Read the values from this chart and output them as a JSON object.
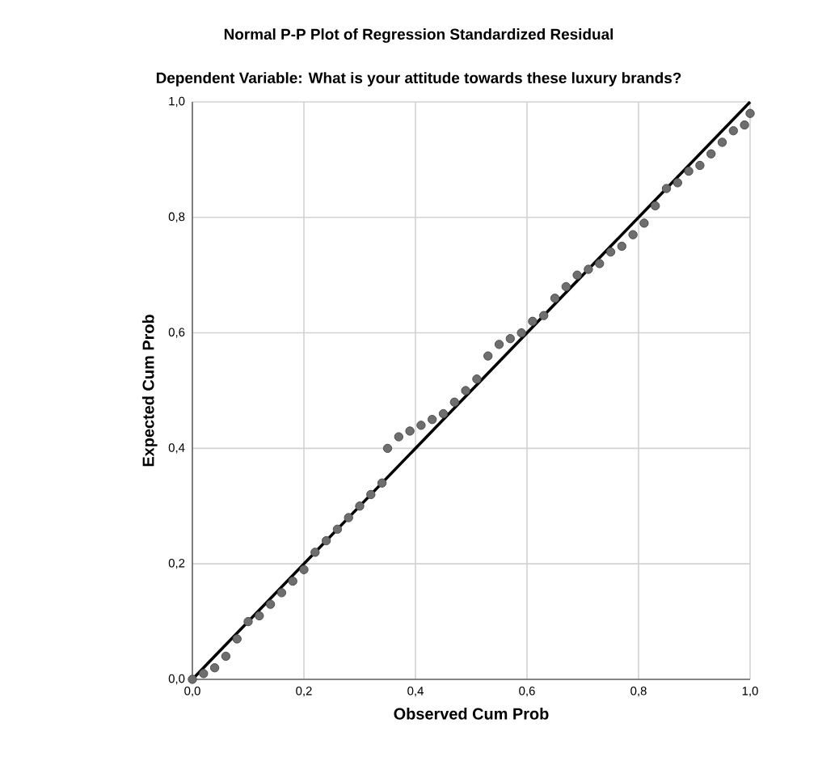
{
  "chart_data": {
    "type": "scatter",
    "title": "Normal P-P Plot of Regression Standardized Residual",
    "subtitle": "Dependent Variable: What is your attitude towards these luxury brands?",
    "xlabel": "Observed Cum Prob",
    "ylabel": "Expected Cum Prob",
    "xlim": [
      0,
      1
    ],
    "ylim": [
      0,
      1
    ],
    "xticks": [
      {
        "value": 0,
        "label": "0,0"
      },
      {
        "value": 0.2,
        "label": "0,2"
      },
      {
        "value": 0.4,
        "label": "0,4"
      },
      {
        "value": 0.6,
        "label": "0,6"
      },
      {
        "value": 0.8,
        "label": "0,8"
      },
      {
        "value": 1,
        "label": "1,0"
      }
    ],
    "yticks": [
      {
        "value": 0,
        "label": "0,0"
      },
      {
        "value": 0.2,
        "label": "0,2"
      },
      {
        "value": 0.4,
        "label": "0,4"
      },
      {
        "value": 0.6,
        "label": "0,6"
      },
      {
        "value": 0.8,
        "label": "0,8"
      },
      {
        "value": 1,
        "label": "1,0"
      }
    ],
    "grid": true,
    "series": [
      {
        "marker": "circle",
        "color": "#6e6e6e",
        "x": [
          0.0,
          0.02,
          0.04,
          0.06,
          0.08,
          0.1,
          0.12,
          0.14,
          0.16,
          0.18,
          0.2,
          0.22,
          0.24,
          0.26,
          0.28,
          0.3,
          0.32,
          0.34,
          0.35,
          0.37,
          0.39,
          0.41,
          0.43,
          0.45,
          0.47,
          0.49,
          0.51,
          0.53,
          0.55,
          0.57,
          0.59,
          0.61,
          0.63,
          0.65,
          0.67,
          0.69,
          0.71,
          0.73,
          0.75,
          0.77,
          0.79,
          0.81,
          0.83,
          0.85,
          0.87,
          0.89,
          0.91,
          0.93,
          0.95,
          0.97,
          0.99,
          1.0
        ],
        "values": [
          0.0,
          0.01,
          0.02,
          0.04,
          0.07,
          0.1,
          0.11,
          0.13,
          0.15,
          0.17,
          0.19,
          0.22,
          0.24,
          0.26,
          0.28,
          0.3,
          0.32,
          0.34,
          0.4,
          0.42,
          0.43,
          0.44,
          0.45,
          0.46,
          0.48,
          0.5,
          0.52,
          0.56,
          0.58,
          0.59,
          0.6,
          0.62,
          0.63,
          0.66,
          0.68,
          0.7,
          0.71,
          0.72,
          0.74,
          0.75,
          0.77,
          0.79,
          0.82,
          0.85,
          0.86,
          0.88,
          0.89,
          0.91,
          0.93,
          0.95,
          0.96,
          0.98
        ]
      },
      {
        "type": "line",
        "marker": "none",
        "color": "#000000",
        "x": [
          0,
          1
        ],
        "values": [
          0,
          1
        ]
      }
    ]
  }
}
